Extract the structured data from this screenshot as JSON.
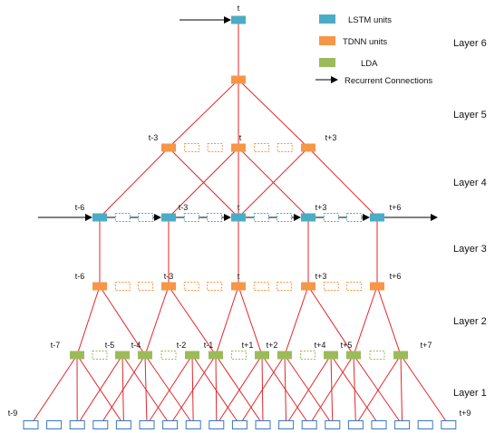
{
  "colors": {
    "lstm": "#4bacc6",
    "tdnn": "#f79646",
    "lda": "#9bbb59",
    "input": "#3a76c2",
    "connection": "#e3262b",
    "arrow": "#000000"
  },
  "legend": [
    {
      "kind": "lstm",
      "label": "LSTM units"
    },
    {
      "kind": "tdnn",
      "label": "TDNN units"
    },
    {
      "kind": "lda",
      "label": "LDA"
    },
    {
      "kind": "arrow",
      "label": "Recurrent Connections"
    }
  ],
  "layers": [
    "Layer 6",
    "Layer 5",
    "Layer 4",
    "Layer 3",
    "Layer 2",
    "Layer 1"
  ],
  "node_labels": {
    "top": "t",
    "layer5": [
      "t-3",
      "t",
      "t+3"
    ],
    "lstm": [
      "t-6",
      "t-3",
      "t",
      "t+3",
      "t+6"
    ],
    "tdnn3": [
      "t-6",
      "t-3",
      "t",
      "t+3",
      "t+6"
    ],
    "lda": [
      "t-7",
      "t-5",
      "t-4",
      "t-2",
      "t-1",
      "t+1",
      "t+2",
      "t+4",
      "t+5",
      "t+7"
    ],
    "input_first": "t-9",
    "input_last": "t+9"
  }
}
